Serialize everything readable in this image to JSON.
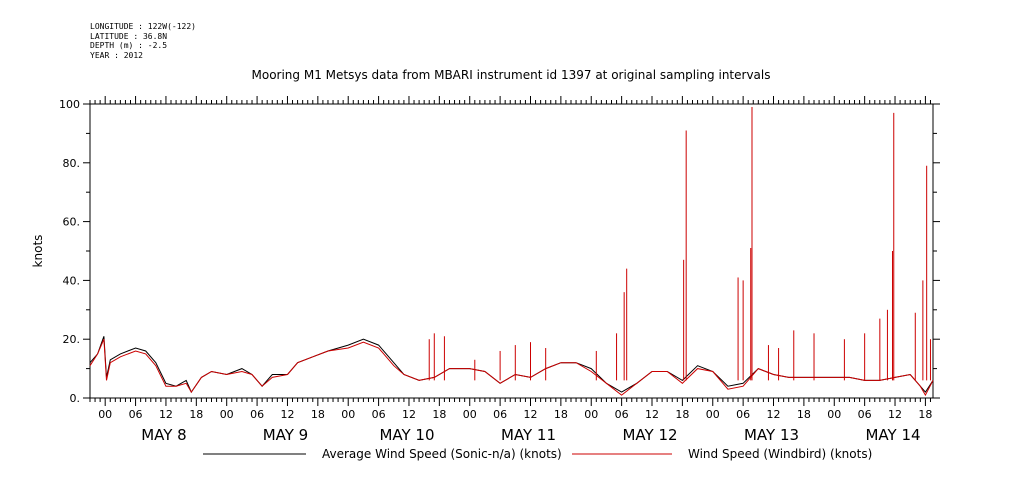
{
  "meta": {
    "longitude": "LONGITUDE : 122W(-122)",
    "latitude": "LATITUDE : 36.8N",
    "depth": "DEPTH (m) : -2.5",
    "year": "YEAR : 2012"
  },
  "chart_data": {
    "type": "line",
    "title": "Mooring M1 Metsys data from MBARI instrument id 1397 at original sampling intervals",
    "ylabel": "knots",
    "ylim": [
      0,
      100
    ],
    "yticks": [
      0,
      20,
      40,
      60,
      80,
      100
    ],
    "ytick_labels": [
      "0.",
      "20.",
      "40.",
      "60.",
      "80.",
      "100"
    ],
    "xlim_hours": [
      -3,
      19.5
    ],
    "x_unit_note_hidden": true,
    "hour_tick_labels": [
      "00",
      "06",
      "12",
      "18"
    ],
    "day_labels": [
      {
        "label": "MAY  8",
        "day": 8
      },
      {
        "label": "MAY  9",
        "day": 9
      },
      {
        "label": "MAY 10",
        "day": 10
      },
      {
        "label": "MAY 11",
        "day": 11
      },
      {
        "label": "MAY 12",
        "day": 12
      },
      {
        "label": "MAY 13",
        "day": 13
      },
      {
        "label": "MAY 14",
        "day": 14
      }
    ],
    "x_start": "2012-05-07T21:00",
    "x_end": "2012-05-14T19:30",
    "series": [
      {
        "name": "Average Wind Speed (Sonic-n/a) (knots)",
        "color": "#000000",
        "points": [
          [
            "2012-05-07T21:00",
            12
          ],
          [
            "2012-05-07T22:30",
            15
          ],
          [
            "2012-05-07T23:45",
            21
          ],
          [
            "2012-05-08T00:15",
            7
          ],
          [
            "2012-05-08T01:00",
            13
          ],
          [
            "2012-05-08T03:00",
            15
          ],
          [
            "2012-05-08T06:00",
            17
          ],
          [
            "2012-05-08T08:00",
            16
          ],
          [
            "2012-05-08T10:00",
            12
          ],
          [
            "2012-05-08T12:00",
            5
          ],
          [
            "2012-05-08T14:00",
            4
          ],
          [
            "2012-05-08T16:00",
            6
          ],
          [
            "2012-05-08T17:00",
            2
          ],
          [
            "2012-05-08T19:00",
            7
          ],
          [
            "2012-05-08T21:00",
            9
          ],
          [
            "2012-05-09T00:00",
            8
          ],
          [
            "2012-05-09T03:00",
            10
          ],
          [
            "2012-05-09T05:00",
            8
          ],
          [
            "2012-05-09T07:00",
            4
          ],
          [
            "2012-05-09T09:00",
            8
          ],
          [
            "2012-05-09T12:00",
            8
          ],
          [
            "2012-05-09T14:00",
            12
          ],
          [
            "2012-05-09T17:00",
            14
          ],
          [
            "2012-05-09T20:00",
            16
          ],
          [
            "2012-05-10T00:00",
            18
          ],
          [
            "2012-05-10T03:00",
            20
          ],
          [
            "2012-05-10T06:00",
            18
          ],
          [
            "2012-05-10T09:00",
            12
          ],
          [
            "2012-05-10T11:00",
            8
          ],
          [
            "2012-05-10T14:00",
            6
          ],
          [
            "2012-05-10T17:00",
            7
          ],
          [
            "2012-05-10T20:00",
            10
          ],
          [
            "2012-05-11T00:00",
            10
          ],
          [
            "2012-05-11T03:00",
            9
          ],
          [
            "2012-05-11T06:00",
            5
          ],
          [
            "2012-05-11T09:00",
            8
          ],
          [
            "2012-05-11T12:00",
            7
          ],
          [
            "2012-05-11T15:00",
            10
          ],
          [
            "2012-05-11T18:00",
            12
          ],
          [
            "2012-05-11T21:00",
            12
          ],
          [
            "2012-05-12T00:00",
            10
          ],
          [
            "2012-05-12T03:00",
            5
          ],
          [
            "2012-05-12T06:00",
            2
          ],
          [
            "2012-05-12T09:00",
            5
          ],
          [
            "2012-05-12T12:00",
            9
          ],
          [
            "2012-05-12T15:00",
            9
          ],
          [
            "2012-05-12T18:00",
            6
          ],
          [
            "2012-05-12T21:00",
            11
          ],
          [
            "2012-05-13T00:00",
            9
          ],
          [
            "2012-05-13T03:00",
            4
          ],
          [
            "2012-05-13T06:00",
            5
          ],
          [
            "2012-05-13T09:00",
            10
          ],
          [
            "2012-05-13T12:00",
            8
          ],
          [
            "2012-05-13T15:00",
            7
          ],
          [
            "2012-05-13T18:00",
            7
          ],
          [
            "2012-05-13T21:00",
            7
          ],
          [
            "2012-05-14T00:00",
            7
          ],
          [
            "2012-05-14T03:00",
            7
          ],
          [
            "2012-05-14T06:00",
            6
          ],
          [
            "2012-05-14T09:00",
            6
          ],
          [
            "2012-05-14T12:00",
            7
          ],
          [
            "2012-05-14T15:00",
            8
          ],
          [
            "2012-05-14T17:00",
            4
          ],
          [
            "2012-05-14T18:00",
            2
          ],
          [
            "2012-05-14T19:30",
            6
          ]
        ]
      },
      {
        "name": "Wind Speed (Windbird) (knots)",
        "color": "#cc0000",
        "points": [
          [
            "2012-05-07T21:00",
            11
          ],
          [
            "2012-05-07T22:30",
            15
          ],
          [
            "2012-05-07T23:45",
            20
          ],
          [
            "2012-05-08T00:15",
            6
          ],
          [
            "2012-05-08T01:00",
            12
          ],
          [
            "2012-05-08T03:00",
            14
          ],
          [
            "2012-05-08T06:00",
            16
          ],
          [
            "2012-05-08T08:00",
            15
          ],
          [
            "2012-05-08T10:00",
            11
          ],
          [
            "2012-05-08T12:00",
            4
          ],
          [
            "2012-05-08T14:00",
            4
          ],
          [
            "2012-05-08T16:00",
            5
          ],
          [
            "2012-05-08T17:00",
            2
          ],
          [
            "2012-05-08T19:00",
            7
          ],
          [
            "2012-05-08T21:00",
            9
          ],
          [
            "2012-05-09T00:00",
            8
          ],
          [
            "2012-05-09T03:00",
            9
          ],
          [
            "2012-05-09T05:00",
            8
          ],
          [
            "2012-05-09T07:00",
            4
          ],
          [
            "2012-05-09T09:00",
            7
          ],
          [
            "2012-05-09T12:00",
            8
          ],
          [
            "2012-05-09T14:00",
            12
          ],
          [
            "2012-05-09T17:00",
            14
          ],
          [
            "2012-05-09T20:00",
            16
          ],
          [
            "2012-05-10T00:00",
            17
          ],
          [
            "2012-05-10T03:00",
            19
          ],
          [
            "2012-05-10T06:00",
            17
          ],
          [
            "2012-05-10T09:00",
            11
          ],
          [
            "2012-05-10T11:00",
            8
          ],
          [
            "2012-05-10T14:00",
            6
          ],
          [
            "2012-05-10T17:00",
            7
          ],
          [
            "2012-05-10T20:00",
            10
          ],
          [
            "2012-05-11T00:00",
            10
          ],
          [
            "2012-05-11T03:00",
            9
          ],
          [
            "2012-05-11T06:00",
            5
          ],
          [
            "2012-05-11T09:00",
            8
          ],
          [
            "2012-05-11T12:00",
            7
          ],
          [
            "2012-05-11T15:00",
            10
          ],
          [
            "2012-05-11T18:00",
            12
          ],
          [
            "2012-05-11T21:00",
            12
          ],
          [
            "2012-05-12T00:00",
            9
          ],
          [
            "2012-05-12T03:00",
            5
          ],
          [
            "2012-05-12T06:00",
            1
          ],
          [
            "2012-05-12T09:00",
            5
          ],
          [
            "2012-05-12T12:00",
            9
          ],
          [
            "2012-05-12T15:00",
            9
          ],
          [
            "2012-05-12T18:00",
            5
          ],
          [
            "2012-05-12T21:00",
            10
          ],
          [
            "2012-05-13T00:00",
            9
          ],
          [
            "2012-05-13T03:00",
            3
          ],
          [
            "2012-05-13T06:00",
            4
          ],
          [
            "2012-05-13T09:00",
            10
          ],
          [
            "2012-05-13T12:00",
            8
          ],
          [
            "2012-05-13T15:00",
            7
          ],
          [
            "2012-05-13T18:00",
            7
          ],
          [
            "2012-05-13T21:00",
            7
          ],
          [
            "2012-05-14T00:00",
            7
          ],
          [
            "2012-05-14T03:00",
            7
          ],
          [
            "2012-05-14T06:00",
            6
          ],
          [
            "2012-05-14T09:00",
            6
          ],
          [
            "2012-05-14T12:00",
            7
          ],
          [
            "2012-05-14T15:00",
            8
          ],
          [
            "2012-05-14T17:00",
            4
          ],
          [
            "2012-05-14T18:00",
            1
          ],
          [
            "2012-05-14T19:30",
            6
          ]
        ],
        "spikes": [
          [
            "2012-05-10T16:00",
            20
          ],
          [
            "2012-05-10T17:00",
            22
          ],
          [
            "2012-05-10T19:00",
            21
          ],
          [
            "2012-05-11T01:00",
            13
          ],
          [
            "2012-05-11T06:00",
            16
          ],
          [
            "2012-05-11T09:00",
            18
          ],
          [
            "2012-05-11T12:00",
            19
          ],
          [
            "2012-05-11T15:00",
            17
          ],
          [
            "2012-05-12T01:00",
            16
          ],
          [
            "2012-05-12T05:00",
            22
          ],
          [
            "2012-05-12T06:30",
            36
          ],
          [
            "2012-05-12T07:00",
            44
          ],
          [
            "2012-05-12T18:15",
            47
          ],
          [
            "2012-05-12T18:45",
            91
          ],
          [
            "2012-05-13T05:00",
            41
          ],
          [
            "2012-05-13T06:00",
            40
          ],
          [
            "2012-05-13T07:30",
            51
          ],
          [
            "2012-05-13T07:45",
            99
          ],
          [
            "2012-05-13T11:00",
            18
          ],
          [
            "2012-05-13T13:00",
            17
          ],
          [
            "2012-05-13T16:00",
            23
          ],
          [
            "2012-05-13T20:00",
            22
          ],
          [
            "2012-05-14T02:00",
            20
          ],
          [
            "2012-05-14T06:00",
            22
          ],
          [
            "2012-05-14T09:00",
            27
          ],
          [
            "2012-05-14T10:30",
            30
          ],
          [
            "2012-05-14T11:30",
            50
          ],
          [
            "2012-05-14T11:45",
            97
          ],
          [
            "2012-05-14T16:00",
            29
          ],
          [
            "2012-05-14T17:30",
            40
          ],
          [
            "2012-05-14T18:15",
            79
          ],
          [
            "2012-05-14T19:00",
            20
          ]
        ]
      }
    ],
    "legend": "bottom"
  }
}
